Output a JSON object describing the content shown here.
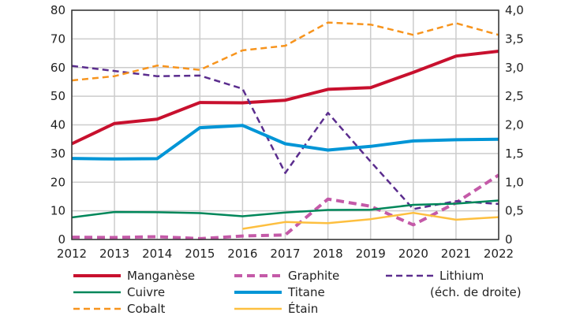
{
  "chart_data": {
    "type": "line",
    "x": [
      2012,
      2013,
      2014,
      2015,
      2016,
      2017,
      2018,
      2019,
      2020,
      2021,
      2022
    ],
    "y_left": {
      "ylim": [
        0,
        80
      ],
      "ticks": [
        "0",
        "10",
        "20",
        "30",
        "40",
        "50",
        "60",
        "70",
        "80"
      ]
    },
    "y_right": {
      "ylim": [
        0,
        4
      ],
      "ticks": [
        "0",
        "0,5",
        "1,0",
        "1,5",
        "2,0",
        "2,5",
        "3,0",
        "3,5",
        "4,0"
      ]
    },
    "grid": true,
    "legend_position": "bottom",
    "series": [
      {
        "name": "Manganèse",
        "color": "#c8102e",
        "dash": false,
        "width": 4,
        "axis": "left",
        "values": [
          33.4,
          40.5,
          42,
          47.8,
          47.7,
          48.6,
          52.4,
          53,
          58.3,
          64,
          65.7
        ]
      },
      {
        "name": "Graphite",
        "color": "#c45aa8",
        "dash": true,
        "width": 4,
        "axis": "left",
        "values": [
          0.8,
          0.7,
          1,
          0.3,
          1.2,
          1.6,
          14.1,
          11.6,
          5.1,
          12.8,
          22.5
        ]
      },
      {
        "name": "Lithium",
        "name2": "(éch. de droite)",
        "color": "#5b2d8e",
        "dash": true,
        "width": 2.5,
        "axis": "right",
        "values": [
          3.03,
          2.94,
          2.85,
          2.86,
          2.63,
          1.16,
          2.21,
          1.36,
          0.53,
          0.67,
          0.62
        ]
      },
      {
        "name": "Cuivre",
        "color": "#00875a",
        "dash": false,
        "width": 2.5,
        "axis": "left",
        "values": [
          7.7,
          9.6,
          9.5,
          9.2,
          8.1,
          9.4,
          10.3,
          10.4,
          12.1,
          12.5,
          13.6
        ]
      },
      {
        "name": "Titane",
        "color": "#0095d6",
        "dash": false,
        "width": 4,
        "axis": "left",
        "values": [
          28.3,
          28.1,
          28.2,
          39,
          39.8,
          33.4,
          31.2,
          32.5,
          34.4,
          34.8,
          35
        ]
      },
      {
        "name": "Cobalt",
        "color": "#f7941d",
        "dash": true,
        "width": 2.5,
        "axis": "left",
        "values": [
          55.5,
          57,
          60.7,
          59.2,
          66,
          67.6,
          75.7,
          75,
          71.4,
          75.5,
          71.4
        ]
      },
      {
        "name": "Étain",
        "color": "#fdbf3f",
        "dash": false,
        "width": 2.5,
        "axis": "left",
        "values": [
          null,
          null,
          null,
          null,
          3.7,
          6.1,
          5.7,
          7.1,
          9.3,
          6.9,
          7.8
        ]
      }
    ]
  }
}
